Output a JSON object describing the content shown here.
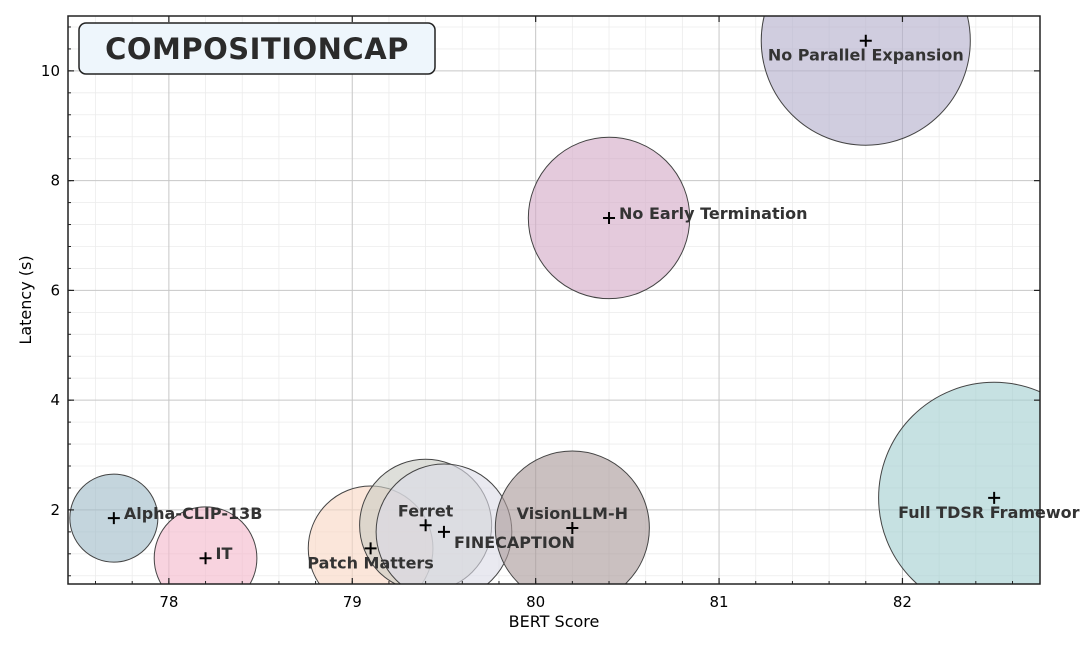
{
  "chart_data": {
    "type": "scatter",
    "title": "COMPOSITIONCAP",
    "xlabel": "BERT Score",
    "ylabel": "Latency (s)",
    "xlim": [
      77.45,
      82.75
    ],
    "ylim": [
      0.65,
      11.0
    ],
    "xticks": [
      78,
      79,
      80,
      81,
      82
    ],
    "yticks": [
      2,
      4,
      6,
      8,
      10
    ],
    "grid": true,
    "points": [
      {
        "label": "Alpha-CLIP-13B",
        "x": 77.7,
        "y": 1.85,
        "size": 0.24,
        "color": "#9fbcc8",
        "label_side": "right"
      },
      {
        "label": "IT",
        "x": 78.2,
        "y": 1.12,
        "size": 0.28,
        "color": "#f4b8cc",
        "label_side": "right"
      },
      {
        "label": "Patch Matters",
        "x": 79.1,
        "y": 1.3,
        "size": 0.34,
        "color": "#f9d6c4",
        "label_side": "below"
      },
      {
        "label": "Ferret",
        "x": 79.4,
        "y": 1.72,
        "size": 0.36,
        "color": "#c9ccc4",
        "label_side": "above"
      },
      {
        "label": "FINECAPTION",
        "x": 79.5,
        "y": 1.6,
        "size": 0.37,
        "color": "#dcdce6",
        "label_side": "right-below"
      },
      {
        "label": "VisionLLM-H",
        "x": 80.2,
        "y": 1.67,
        "size": 0.42,
        "color": "#a99a9a",
        "label_side": "above"
      },
      {
        "label": "No Early Termination",
        "x": 80.4,
        "y": 7.32,
        "size": 0.44,
        "color": "#d4a9c6",
        "label_side": "right"
      },
      {
        "label": "No Parallel Expansion",
        "x": 81.8,
        "y": 10.55,
        "size": 0.57,
        "color": "#b3afcc",
        "label_side": "below"
      },
      {
        "label": "Full TDSR Framework",
        "x": 82.5,
        "y": 2.22,
        "size": 0.63,
        "color": "#a3ced0",
        "label_side": "below"
      }
    ]
  }
}
